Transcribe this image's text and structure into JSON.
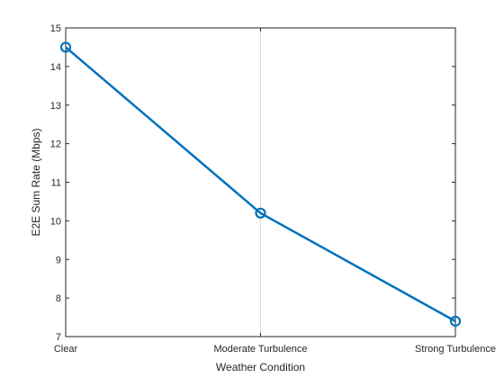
{
  "chart_data": {
    "type": "line",
    "categories": [
      "Clear",
      "Moderate Turbulence",
      "Strong Turbulence"
    ],
    "series": [
      {
        "values": [
          14.5,
          10.2,
          7.4
        ],
        "color": "#0072BD",
        "marker": "circle"
      }
    ],
    "xlabel": "Weather Condition",
    "ylabel": "E2E Sum Rate (Mbps)",
    "ylim": [
      7,
      15
    ],
    "yticks": [
      7,
      8,
      9,
      10,
      11,
      12,
      13,
      14,
      15
    ],
    "grid": true
  }
}
